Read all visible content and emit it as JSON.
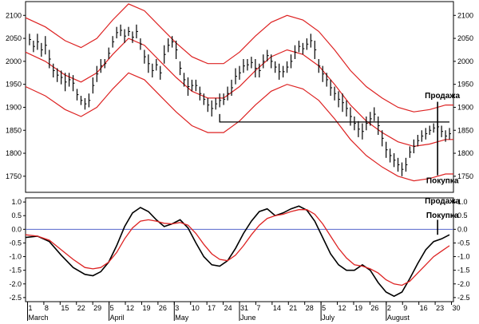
{
  "chart_data": [
    {
      "type": "line",
      "name_panel": "price",
      "ylim": [
        1715,
        2130
      ],
      "y_ticks": [
        1750,
        1800,
        1850,
        1900,
        1950,
        2000,
        2050,
        2100
      ],
      "x_ticks": [
        "1",
        "8",
        "15",
        "22",
        "29",
        "5",
        "12",
        "19",
        "26",
        "3",
        "10",
        "17",
        "24",
        "31",
        "7",
        "14",
        "21",
        "28",
        "5",
        "12",
        "19",
        "26",
        "2",
        "9",
        "16",
        "23",
        "30"
      ],
      "months": [
        "March",
        "April",
        "May",
        "June",
        "July",
        "August"
      ],
      "envelope_mid": [
        [
          0,
          2020
        ],
        [
          5,
          2000
        ],
        [
          10,
          1970
        ],
        [
          14,
          1955
        ],
        [
          18,
          1975
        ],
        [
          22,
          2015
        ],
        [
          26,
          2050
        ],
        [
          30,
          2035
        ],
        [
          34,
          2000
        ],
        [
          38,
          1965
        ],
        [
          42,
          1935
        ],
        [
          46,
          1920
        ],
        [
          50,
          1920
        ],
        [
          54,
          1945
        ],
        [
          58,
          1980
        ],
        [
          62,
          2010
        ],
        [
          66,
          2025
        ],
        [
          70,
          2015
        ],
        [
          74,
          1990
        ],
        [
          78,
          1950
        ],
        [
          82,
          1905
        ],
        [
          86,
          1870
        ],
        [
          90,
          1845
        ],
        [
          94,
          1825
        ],
        [
          98,
          1815
        ],
        [
          102,
          1820
        ],
        [
          106,
          1830
        ],
        [
          108,
          1830
        ]
      ],
      "envelope_offset": 75,
      "price_bars": [
        [
          1,
          2060,
          2035
        ],
        [
          2,
          2045,
          2020
        ],
        [
          3,
          2060,
          2025
        ],
        [
          4,
          2040,
          2010
        ],
        [
          5,
          2055,
          2015
        ],
        [
          6,
          2025,
          1985
        ],
        [
          7,
          1995,
          1965
        ],
        [
          8,
          1985,
          1955
        ],
        [
          9,
          1980,
          1950
        ],
        [
          10,
          1975,
          1935
        ],
        [
          11,
          1975,
          1945
        ],
        [
          12,
          1970,
          1935
        ],
        [
          13,
          1940,
          1915
        ],
        [
          14,
          1925,
          1905
        ],
        [
          15,
          1920,
          1895
        ],
        [
          16,
          1930,
          1900
        ],
        [
          17,
          1965,
          1930
        ],
        [
          18,
          1990,
          1955
        ],
        [
          19,
          2005,
          1975
        ],
        [
          20,
          2005,
          1985
        ],
        [
          21,
          2030,
          2005
        ],
        [
          22,
          2055,
          2030
        ],
        [
          23,
          2075,
          2050
        ],
        [
          24,
          2080,
          2055
        ],
        [
          25,
          2070,
          2040
        ],
        [
          26,
          2075,
          2055
        ],
        [
          27,
          2065,
          2040
        ],
        [
          28,
          2080,
          2050
        ],
        [
          29,
          2050,
          2025
        ],
        [
          30,
          2025,
          1995
        ],
        [
          31,
          2015,
          1975
        ],
        [
          32,
          1995,
          1965
        ],
        [
          33,
          2005,
          1980
        ],
        [
          34,
          1990,
          1960
        ],
        [
          35,
          2035,
          1995
        ],
        [
          36,
          2050,
          2020
        ],
        [
          37,
          2055,
          2030
        ],
        [
          38,
          2045,
          2005
        ],
        [
          39,
          2000,
          1970
        ],
        [
          40,
          1975,
          1945
        ],
        [
          41,
          1965,
          1925
        ],
        [
          42,
          1960,
          1935
        ],
        [
          43,
          1960,
          1935
        ],
        [
          44,
          1945,
          1915
        ],
        [
          45,
          1930,
          1905
        ],
        [
          46,
          1920,
          1890
        ],
        [
          47,
          1915,
          1880
        ],
        [
          48,
          1920,
          1895
        ],
        [
          49,
          1930,
          1900
        ],
        [
          50,
          1930,
          1905
        ],
        [
          51,
          1945,
          1915
        ],
        [
          52,
          1960,
          1925
        ],
        [
          53,
          1985,
          1950
        ],
        [
          54,
          1990,
          1960
        ],
        [
          55,
          2005,
          1975
        ],
        [
          56,
          2005,
          1980
        ],
        [
          57,
          2010,
          1985
        ],
        [
          58,
          2005,
          1965
        ],
        [
          59,
          1995,
          1965
        ],
        [
          60,
          2015,
          1985
        ],
        [
          61,
          2025,
          2000
        ],
        [
          62,
          2015,
          1985
        ],
        [
          63,
          2000,
          1975
        ],
        [
          64,
          1995,
          1960
        ],
        [
          65,
          1990,
          1965
        ],
        [
          66,
          2000,
          1975
        ],
        [
          67,
          2015,
          1985
        ],
        [
          68,
          2035,
          2005
        ],
        [
          69,
          2045,
          2020
        ],
        [
          70,
          2040,
          2015
        ],
        [
          71,
          2050,
          2025
        ],
        [
          72,
          2060,
          2030
        ],
        [
          73,
          2045,
          2005
        ],
        [
          74,
          2005,
          1975
        ],
        [
          75,
          1990,
          1955
        ],
        [
          76,
          1975,
          1945
        ],
        [
          77,
          1960,
          1925
        ],
        [
          78,
          1945,
          1915
        ],
        [
          79,
          1935,
          1900
        ],
        [
          80,
          1930,
          1890
        ],
        [
          81,
          1915,
          1880
        ],
        [
          82,
          1900,
          1860
        ],
        [
          83,
          1880,
          1850
        ],
        [
          84,
          1870,
          1835
        ],
        [
          85,
          1865,
          1830
        ],
        [
          86,
          1880,
          1850
        ],
        [
          87,
          1890,
          1860
        ],
        [
          88,
          1900,
          1870
        ],
        [
          89,
          1880,
          1840
        ],
        [
          90,
          1850,
          1815
        ],
        [
          91,
          1825,
          1790
        ],
        [
          92,
          1810,
          1780
        ],
        [
          93,
          1800,
          1770
        ],
        [
          94,
          1790,
          1760
        ],
        [
          95,
          1780,
          1750
        ],
        [
          96,
          1790,
          1760
        ],
        [
          97,
          1815,
          1790
        ],
        [
          98,
          1830,
          1800
        ],
        [
          99,
          1840,
          1815
        ],
        [
          100,
          1850,
          1825
        ],
        [
          101,
          1855,
          1830
        ],
        [
          102,
          1860,
          1840
        ],
        [
          103,
          1865,
          1845
        ],
        [
          104,
          1870,
          1845
        ],
        [
          105,
          1860,
          1835
        ],
        [
          106,
          1850,
          1825
        ],
        [
          107,
          1855,
          1830
        ]
      ],
      "support_line": {
        "x_start": 49,
        "x_end": 107,
        "y": 1868
      },
      "signal_x": 104,
      "annotations": [
        {
          "text": "Продажа",
          "x": 104,
          "y": 1920
        },
        {
          "text": "Покупка",
          "x": 104,
          "y": 1735
        }
      ],
      "colors": {
        "envelope": "#dd2222",
        "bars": "#000000",
        "support": "#000000"
      }
    },
    {
      "type": "line",
      "name_panel": "oscillator",
      "ylim": [
        -2.65,
        1.15
      ],
      "y_ticks": [
        1.0,
        0.5,
        0.0,
        -0.5,
        -1.0,
        -1.5,
        -2.0,
        -2.5
      ],
      "y_tick_labels": [
        "1.0",
        "0.5",
        "0.0",
        "-0.5",
        "-1.0",
        "-1.5",
        "-2.0",
        "-2.5"
      ],
      "zero_line": 0.0,
      "series": [
        {
          "color": "#000000",
          "points": [
            [
              0,
              -0.3
            ],
            [
              3,
              -0.25
            ],
            [
              6,
              -0.45
            ],
            [
              9,
              -0.95
            ],
            [
              12,
              -1.4
            ],
            [
              15,
              -1.65
            ],
            [
              17,
              -1.7
            ],
            [
              19,
              -1.55
            ],
            [
              21,
              -1.2
            ],
            [
              23,
              -0.6
            ],
            [
              25,
              0.1
            ],
            [
              27,
              0.6
            ],
            [
              29,
              0.8
            ],
            [
              31,
              0.65
            ],
            [
              33,
              0.35
            ],
            [
              35,
              0.1
            ],
            [
              37,
              0.2
            ],
            [
              39,
              0.35
            ],
            [
              41,
              0.05
            ],
            [
              43,
              -0.5
            ],
            [
              45,
              -1.0
            ],
            [
              47,
              -1.3
            ],
            [
              49,
              -1.35
            ],
            [
              51,
              -1.15
            ],
            [
              53,
              -0.7
            ],
            [
              55,
              -0.15
            ],
            [
              57,
              0.3
            ],
            [
              59,
              0.65
            ],
            [
              61,
              0.75
            ],
            [
              63,
              0.5
            ],
            [
              65,
              0.6
            ],
            [
              67,
              0.75
            ],
            [
              69,
              0.85
            ],
            [
              71,
              0.7
            ],
            [
              73,
              0.3
            ],
            [
              75,
              -0.3
            ],
            [
              77,
              -0.9
            ],
            [
              79,
              -1.3
            ],
            [
              81,
              -1.5
            ],
            [
              83,
              -1.5
            ],
            [
              85,
              -1.3
            ],
            [
              87,
              -1.5
            ],
            [
              89,
              -1.95
            ],
            [
              91,
              -2.3
            ],
            [
              93,
              -2.45
            ],
            [
              95,
              -2.3
            ],
            [
              97,
              -1.8
            ],
            [
              99,
              -1.25
            ],
            [
              101,
              -0.75
            ],
            [
              103,
              -0.45
            ],
            [
              105,
              -0.35
            ],
            [
              107,
              -0.2
            ]
          ]
        },
        {
          "color": "#dd2222",
          "points": [
            [
              0,
              -0.2
            ],
            [
              3,
              -0.25
            ],
            [
              6,
              -0.4
            ],
            [
              9,
              -0.75
            ],
            [
              12,
              -1.1
            ],
            [
              15,
              -1.4
            ],
            [
              17,
              -1.45
            ],
            [
              19,
              -1.4
            ],
            [
              21,
              -1.2
            ],
            [
              23,
              -0.85
            ],
            [
              25,
              -0.35
            ],
            [
              27,
              0.05
            ],
            [
              29,
              0.3
            ],
            [
              31,
              0.35
            ],
            [
              33,
              0.3
            ],
            [
              35,
              0.22
            ],
            [
              37,
              0.2
            ],
            [
              39,
              0.25
            ],
            [
              41,
              0.15
            ],
            [
              43,
              -0.15
            ],
            [
              45,
              -0.55
            ],
            [
              47,
              -0.9
            ],
            [
              49,
              -1.1
            ],
            [
              51,
              -1.15
            ],
            [
              53,
              -0.95
            ],
            [
              55,
              -0.6
            ],
            [
              57,
              -0.2
            ],
            [
              59,
              0.15
            ],
            [
              61,
              0.4
            ],
            [
              63,
              0.5
            ],
            [
              65,
              0.55
            ],
            [
              67,
              0.65
            ],
            [
              69,
              0.72
            ],
            [
              71,
              0.72
            ],
            [
              73,
              0.55
            ],
            [
              75,
              0.2
            ],
            [
              77,
              -0.25
            ],
            [
              79,
              -0.7
            ],
            [
              81,
              -1.05
            ],
            [
              83,
              -1.3
            ],
            [
              85,
              -1.35
            ],
            [
              87,
              -1.45
            ],
            [
              89,
              -1.6
            ],
            [
              91,
              -1.85
            ],
            [
              93,
              -2.0
            ],
            [
              95,
              -2.05
            ],
            [
              97,
              -1.9
            ],
            [
              99,
              -1.6
            ],
            [
              101,
              -1.3
            ],
            [
              103,
              -1.0
            ],
            [
              105,
              -0.8
            ],
            [
              107,
              -0.6
            ]
          ]
        }
      ],
      "signal_x": 104,
      "annotations": [
        {
          "text": "Продажа",
          "x": 104,
          "y": 0.95
        },
        {
          "text": "Покупка",
          "x": 104,
          "y": 0.42
        }
      ],
      "colors": {
        "zero_line": "#5566cc"
      }
    }
  ]
}
